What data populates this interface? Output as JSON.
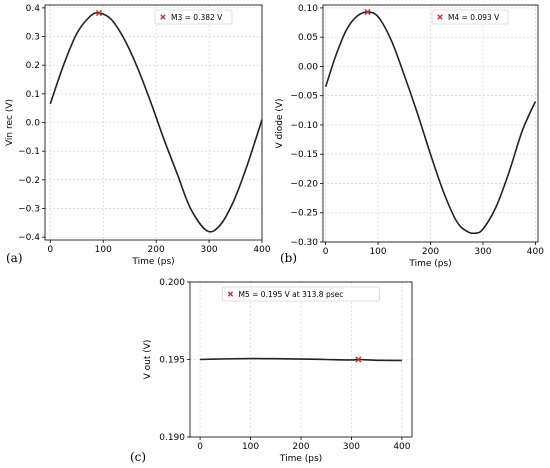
{
  "chart_data": [
    {
      "panel": "(a)",
      "type": "line",
      "xlabel": "Time (ps)",
      "ylabel": "Vin rec (V)",
      "xlim": [
        -10,
        400
      ],
      "ylim": [
        -0.41,
        0.41
      ],
      "xticks": [
        0,
        100,
        200,
        300,
        400
      ],
      "yticks": [
        -0.4,
        -0.3,
        -0.2,
        -0.1,
        0.0,
        0.1,
        0.2,
        0.3,
        0.4
      ],
      "ytick_labels": [
        "−0.4",
        "−0.3",
        "−0.2",
        "−0.1",
        "0.0",
        "0.1",
        "0.2",
        "0.3",
        "0.4"
      ],
      "grid": true,
      "x": [
        0,
        25,
        50,
        75,
        92,
        115,
        140,
        165,
        190,
        215,
        240,
        265,
        296,
        320,
        345,
        370,
        400
      ],
      "y": [
        0.065,
        0.2,
        0.31,
        0.37,
        0.382,
        0.36,
        0.29,
        0.19,
        0.07,
        -0.06,
        -0.18,
        -0.3,
        -0.378,
        -0.36,
        -0.28,
        -0.16,
        0.01
      ],
      "marker": {
        "x": 92,
        "y": 0.382,
        "label": "M3 = 0.382 V"
      },
      "legend_position": "top-right"
    },
    {
      "panel": "(b)",
      "type": "line",
      "xlabel": "Time (ps)",
      "ylabel": "V diode (V)",
      "xlim": [
        -5,
        405
      ],
      "ylim": [
        -0.3,
        0.105
      ],
      "xticks": [
        0,
        100,
        200,
        300,
        400
      ],
      "yticks": [
        -0.3,
        -0.25,
        -0.2,
        -0.15,
        -0.1,
        -0.05,
        0.0,
        0.05,
        0.1
      ],
      "ytick_labels": [
        "−0.30",
        "−0.25",
        "−0.20",
        "−0.15",
        "−0.10",
        "−0.05",
        "0.00",
        "0.05",
        "0.10"
      ],
      "grid": true,
      "x": [
        0,
        20,
        40,
        60,
        80,
        100,
        125,
        150,
        175,
        200,
        225,
        250,
        270,
        285,
        300,
        325,
        350,
        375,
        400
      ],
      "y": [
        -0.035,
        0.02,
        0.063,
        0.086,
        0.093,
        0.085,
        0.045,
        -0.015,
        -0.08,
        -0.15,
        -0.215,
        -0.265,
        -0.282,
        -0.285,
        -0.278,
        -0.24,
        -0.18,
        -0.11,
        -0.06
      ],
      "marker": {
        "x": 80,
        "y": 0.093,
        "label": "M4 = 0.093 V"
      },
      "legend_position": "top-right"
    },
    {
      "panel": "(c)",
      "type": "line",
      "xlabel": "Time (ps)",
      "ylabel": "V out (V)",
      "xlim": [
        -20,
        420
      ],
      "ylim": [
        0.19,
        0.2
      ],
      "xticks": [
        0,
        100,
        200,
        300,
        400
      ],
      "yticks": [
        0.19,
        0.195,
        0.2
      ],
      "ytick_labels": [
        "0.190",
        "0.195",
        "0.200"
      ],
      "grid": true,
      "x": [
        0,
        50,
        100,
        150,
        200,
        250,
        300,
        313.8,
        350,
        400
      ],
      "y": [
        0.195,
        0.19504,
        0.19506,
        0.19505,
        0.19503,
        0.195,
        0.19497,
        0.195,
        0.19495,
        0.19494
      ],
      "marker": {
        "x": 313.8,
        "y": 0.195,
        "label": "M5 = 0.195 V at 313.8 psec"
      },
      "legend_position": "top-center"
    }
  ]
}
